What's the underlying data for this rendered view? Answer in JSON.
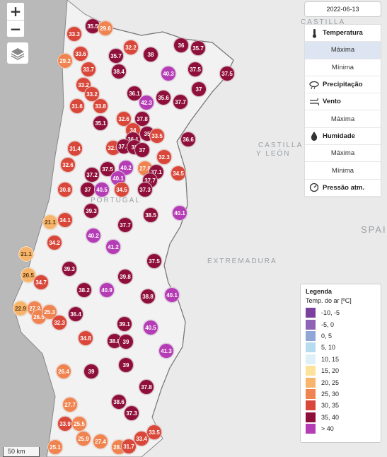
{
  "map": {
    "region_labels": [
      "CASTILLA",
      "CASTILLA",
      "Y LEÓN",
      "PORTUGAL",
      "EXTREMADURA",
      "SPAI"
    ],
    "scale_label": "50 km",
    "zoom_in": "+",
    "zoom_out": "−"
  },
  "date": "2022-06-13",
  "menu": {
    "temperature": "Temperatura",
    "temperature_max": "Máxima",
    "temperature_min": "Mínima",
    "precipitation": "Precipitação",
    "wind": "Vento",
    "wind_max": "Máxima",
    "humidity": "Humidade",
    "humidity_max": "Máxima",
    "humidity_min": "Mínima",
    "pressure": "Pressão atm."
  },
  "icons": {
    "thermometer": "thermometer-icon",
    "precipitation": "rain-cloud-icon",
    "wind": "wind-icon",
    "humidity": "droplet-icon",
    "pressure": "gauge-icon",
    "layers": "layers-icon"
  },
  "legend": {
    "title": "Legenda",
    "subtitle": "Temp. do ar [ºC]",
    "items": [
      {
        "label": "-10, -5",
        "color": "#7b3f9e"
      },
      {
        "label": "-5, 0",
        "color": "#8e63b5"
      },
      {
        "label": "0, 5",
        "color": "#8fa6d6"
      },
      {
        "label": "5, 10",
        "color": "#b6dcf0"
      },
      {
        "label": "10, 15",
        "color": "#dff1f8"
      },
      {
        "label": "15, 20",
        "color": "#fde29a"
      },
      {
        "label": "20, 25",
        "color": "#f7b46b"
      },
      {
        "label": "25, 30",
        "color": "#ef8451"
      },
      {
        "label": "30, 35",
        "color": "#d8473a"
      },
      {
        "label": "35, 40",
        "color": "#8e0f3a"
      },
      {
        "label": "> 40",
        "color": "#b43cb4"
      }
    ]
  },
  "stations": [
    "35.5",
    "29.6",
    "33.3",
    "32.2",
    "36",
    "35.7",
    "33.6",
    "35.7",
    "38",
    "29.2",
    "33.7",
    "38.4",
    "40.3",
    "37.5",
    "37.5",
    "33.2",
    "33.2",
    "36.1",
    "37",
    "31.6",
    "33.8",
    "42.3",
    "35.6",
    "37.7",
    "32.6",
    "37.8",
    "35.1",
    "34",
    "36.1",
    "35",
    "33.5",
    "36.6",
    "31.4",
    "32.9",
    "37.3",
    "38",
    "37",
    "32.3",
    "32.6",
    "37.5",
    "40.2",
    "27.8",
    "37.1",
    "34.5",
    "37.2",
    "40.1",
    "37.7",
    "30.8",
    "37",
    "40.5",
    "34.5",
    "37.3",
    "39.3",
    "38.5",
    "40.1",
    "21.1",
    "34.1",
    "37.7",
    "40.2",
    "34.2",
    "41.2",
    "21.1",
    "37.5",
    "39.3",
    "20.5",
    "34.7",
    "39.8",
    "38.2",
    "40.9",
    "38.8",
    "40.1",
    "22.9",
    "27.2",
    "26.5",
    "25.3",
    "36.4",
    "32.3",
    "39.1",
    "40.5",
    "34.8",
    "38.8",
    "39",
    "41.3",
    "26.4",
    "39",
    "39",
    "37.8",
    "27.7",
    "38.6",
    "37.3",
    "33.9",
    "25.5",
    "25.9",
    "27.4",
    "33.4",
    "28.4",
    "31.7",
    "33.5",
    "25.1"
  ]
}
